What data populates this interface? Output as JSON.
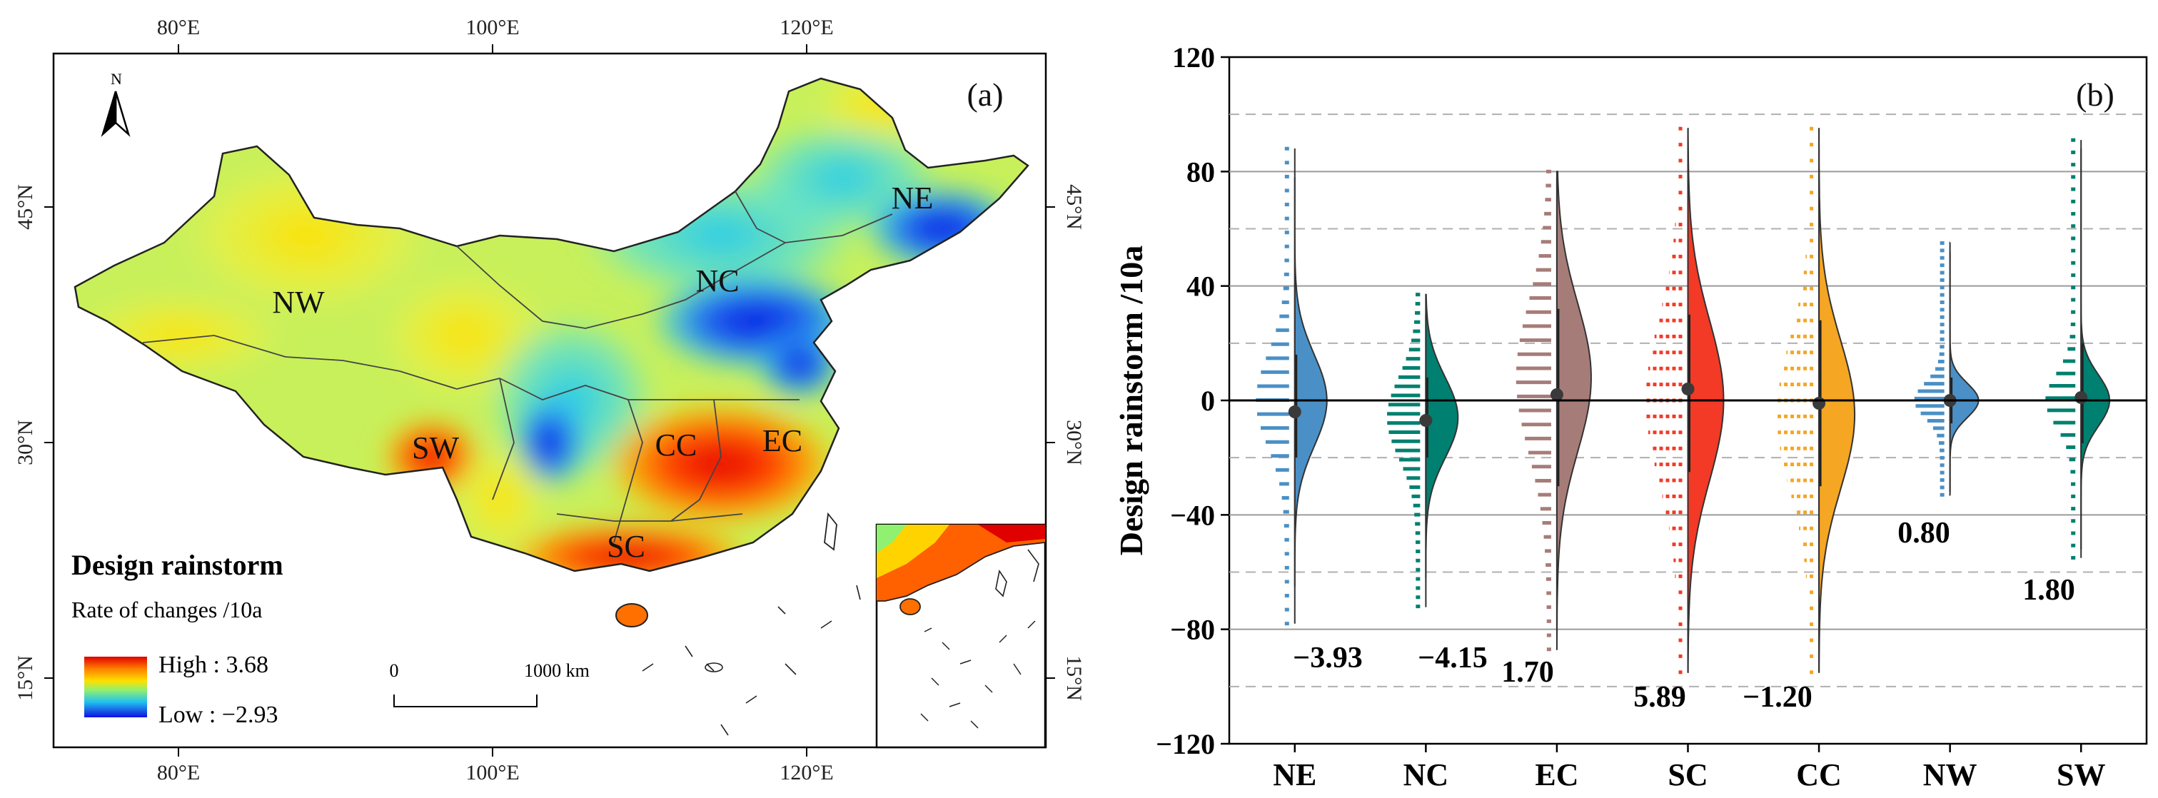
{
  "panel_a": {
    "label": "(a)",
    "north_label": "N",
    "lon_ticks": [
      "80°E",
      "100°E",
      "120°E"
    ],
    "lat_ticks": [
      "45°N",
      "30°N",
      "15°N"
    ],
    "regions": [
      "NW",
      "NE",
      "NC",
      "SW",
      "CC",
      "EC",
      "SC"
    ],
    "legend_title": "Design rainstorm",
    "legend_subtitle": "Rate of changes /10a",
    "legend_high": "High : 3.68",
    "legend_low": "Low : −2.93",
    "scale_zero": "0",
    "scale_max": "1000 km",
    "colors": {
      "high": "#e00000",
      "mid_high": "#ffd400",
      "mid": "#b8ef50",
      "mid_low": "#30d0f0",
      "low": "#0010e0"
    }
  },
  "chart_data": {
    "type": "raincloud",
    "label": "(b)",
    "ylabel": "Design rainstorm /10a",
    "ylim": [
      -120,
      120
    ],
    "yticks": [
      -120,
      -80,
      -40,
      0,
      40,
      80,
      120
    ],
    "ytick_labels": [
      "−120",
      "−80",
      "−40",
      "0",
      "40",
      "80",
      "120"
    ],
    "dashed_grid": [
      -100,
      -60,
      -20,
      20,
      60,
      100
    ],
    "categories": [
      "NE",
      "NC",
      "EC",
      "SC",
      "CC",
      "NW",
      "SW"
    ],
    "series": [
      {
        "name": "NE",
        "color": "#4a90c6",
        "trend": "−3.93",
        "median": -4,
        "q1": -20,
        "q3": 16,
        "whisker_low": -65,
        "whisker_high": 78,
        "kde_min": -78,
        "kde_max": 88,
        "kde_mu": 0,
        "kde_sd": 16,
        "kde_width": 45
      },
      {
        "name": "NC",
        "color": "#008070",
        "trend": "−4.15",
        "median": -7,
        "q1": -20,
        "q3": 8,
        "whisker_low": -62,
        "whisker_high": 30,
        "kde_min": -72,
        "kde_max": 37,
        "kde_mu": -6,
        "kde_sd": 14,
        "kde_width": 45
      },
      {
        "name": "EC",
        "color": "#a67c79",
        "trend": "1.70",
        "median": 2,
        "q1": -30,
        "q3": 32,
        "whisker_low": -80,
        "whisker_high": 78,
        "kde_min": -87,
        "kde_max": 80,
        "kde_mu": 8,
        "kde_sd": 26,
        "kde_width": 48
      },
      {
        "name": "SC",
        "color": "#f23a26",
        "trend": "5.89",
        "median": 4,
        "q1": -25,
        "q3": 30,
        "whisker_low": -95,
        "whisker_high": 95,
        "kde_min": -95,
        "kde_max": 95,
        "kde_mu": 0,
        "kde_sd": 28,
        "kde_width": 50
      },
      {
        "name": "CC",
        "color": "#f5a623",
        "trend": "−1.20",
        "median": -1,
        "q1": -30,
        "q3": 28,
        "whisker_low": -95,
        "whisker_high": 95,
        "kde_min": -95,
        "kde_max": 95,
        "kde_mu": -5,
        "kde_sd": 26,
        "kde_width": 50
      },
      {
        "name": "NW",
        "color": "#4a90c6",
        "trend": "0.80",
        "median": 0,
        "q1": -8,
        "q3": 8,
        "whisker_low": -32,
        "whisker_high": 52,
        "kde_min": -33,
        "kde_max": 55,
        "kde_mu": 0,
        "kde_sd": 6,
        "kde_width": 40
      },
      {
        "name": "SW",
        "color": "#008070",
        "trend": "1.80",
        "median": 1,
        "q1": -15,
        "q3": 20,
        "whisker_low": -52,
        "whisker_high": 88,
        "kde_min": -55,
        "kde_max": 91,
        "kde_mu": 0,
        "kde_sd": 9,
        "kde_width": 40
      }
    ]
  }
}
